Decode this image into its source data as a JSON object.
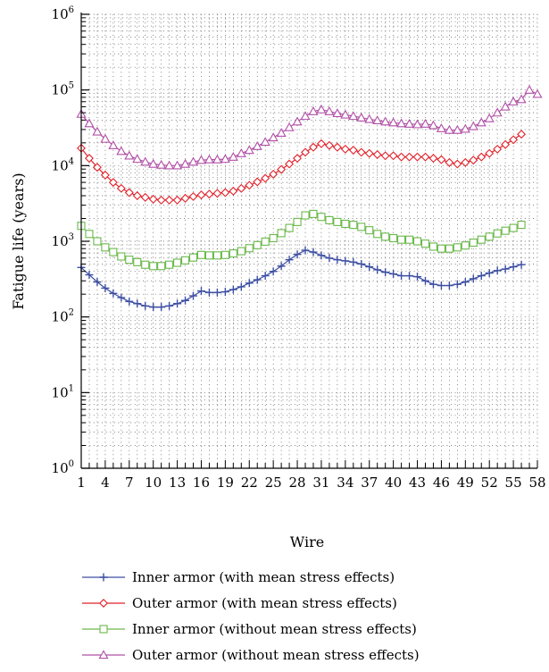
{
  "chart_data": {
    "type": "line",
    "xlabel": "Wire",
    "ylabel": "Fatigue life (years)",
    "yscale": "log",
    "ylim": [
      1,
      1000000
    ],
    "xlim": [
      1,
      58
    ],
    "xticks": [
      1,
      4,
      7,
      10,
      13,
      16,
      19,
      22,
      25,
      28,
      31,
      34,
      37,
      40,
      43,
      46,
      49,
      52,
      55,
      58
    ],
    "yticks": [
      {
        "base": "10",
        "exp": "0",
        "value": 1
      },
      {
        "base": "10",
        "exp": "1",
        "value": 10
      },
      {
        "base": "10",
        "exp": "2",
        "value": 100
      },
      {
        "base": "10",
        "exp": "3",
        "value": 1000
      },
      {
        "base": "10",
        "exp": "4",
        "value": 10000
      },
      {
        "base": "10",
        "exp": "5",
        "value": 100000
      },
      {
        "base": "10",
        "exp": "6",
        "value": 1000000
      }
    ],
    "grid": "dotted",
    "legend_position": "below",
    "series": [
      {
        "name": "Inner armor (with mean stress effects)",
        "color": "#3d4fa3",
        "marker": "plus",
        "x": [
          1,
          2,
          3,
          4,
          5,
          6,
          7,
          8,
          9,
          10,
          11,
          12,
          13,
          14,
          15,
          16,
          17,
          18,
          19,
          20,
          21,
          22,
          23,
          24,
          25,
          26,
          27,
          28,
          29,
          30,
          31,
          32,
          33,
          34,
          35,
          36,
          37,
          38,
          39,
          40,
          41,
          42,
          43,
          44,
          45,
          46,
          47,
          48,
          49,
          50,
          51,
          52,
          53,
          54,
          55,
          56
        ],
        "y": [
          450,
          360,
          290,
          240,
          205,
          180,
          160,
          150,
          140,
          135,
          135,
          140,
          150,
          165,
          190,
          220,
          210,
          210,
          215,
          230,
          250,
          280,
          310,
          350,
          400,
          470,
          570,
          670,
          760,
          720,
          650,
          600,
          570,
          550,
          530,
          500,
          460,
          420,
          390,
          370,
          350,
          350,
          340,
          300,
          270,
          260,
          260,
          270,
          290,
          320,
          350,
          380,
          410,
          430,
          460,
          490
        ]
      },
      {
        "name": "Outer armor (with mean stress effects)",
        "color": "#e0222a",
        "marker": "diamond",
        "x": [
          1,
          2,
          3,
          4,
          5,
          6,
          7,
          8,
          9,
          10,
          11,
          12,
          13,
          14,
          15,
          16,
          17,
          18,
          19,
          20,
          21,
          22,
          23,
          24,
          25,
          26,
          27,
          28,
          29,
          30,
          31,
          32,
          33,
          34,
          35,
          36,
          37,
          38,
          39,
          40,
          41,
          42,
          43,
          44,
          45,
          46,
          47,
          48,
          49,
          50,
          51,
          52,
          53,
          54,
          55,
          56
        ],
        "y": [
          17000,
          12500,
          9500,
          7500,
          6000,
          5000,
          4400,
          4000,
          3800,
          3600,
          3500,
          3500,
          3500,
          3700,
          3900,
          4100,
          4200,
          4300,
          4400,
          4600,
          5000,
          5500,
          6100,
          6800,
          7700,
          8900,
          10500,
          12500,
          15000,
          17500,
          19500,
          18500,
          17500,
          16500,
          16000,
          15000,
          14500,
          14000,
          13500,
          13500,
          13000,
          13000,
          13000,
          13000,
          12500,
          12000,
          11000,
          10500,
          11000,
          11800,
          13000,
          14500,
          16500,
          19000,
          22000,
          26000
        ]
      },
      {
        "name": "Inner armor (without mean stress effects)",
        "color": "#6ab84a",
        "marker": "square",
        "x": [
          1,
          2,
          3,
          4,
          5,
          6,
          7,
          8,
          9,
          10,
          11,
          12,
          13,
          14,
          15,
          16,
          17,
          18,
          19,
          20,
          21,
          22,
          23,
          24,
          25,
          26,
          27,
          28,
          29,
          30,
          31,
          32,
          33,
          34,
          35,
          36,
          37,
          38,
          39,
          40,
          41,
          42,
          43,
          44,
          45,
          46,
          47,
          48,
          49,
          50,
          51,
          52,
          53,
          54,
          55,
          56
        ],
        "y": [
          1600,
          1250,
          1000,
          830,
          720,
          630,
          570,
          530,
          490,
          470,
          470,
          490,
          520,
          560,
          610,
          660,
          650,
          650,
          660,
          690,
          740,
          810,
          890,
          990,
          1100,
          1280,
          1500,
          1800,
          2200,
          2300,
          2100,
          1900,
          1800,
          1700,
          1650,
          1550,
          1400,
          1250,
          1150,
          1100,
          1050,
          1050,
          1000,
          930,
          850,
          800,
          800,
          830,
          880,
          960,
          1050,
          1150,
          1270,
          1380,
          1500,
          1650
        ]
      },
      {
        "name": "Outer armor (without mean stress effects)",
        "color": "#b04fa6",
        "marker": "triangle",
        "x": [
          1,
          2,
          3,
          4,
          5,
          6,
          7,
          8,
          9,
          10,
          11,
          12,
          13,
          14,
          15,
          16,
          17,
          18,
          19,
          20,
          21,
          22,
          23,
          24,
          25,
          26,
          27,
          28,
          29,
          30,
          31,
          32,
          33,
          34,
          35,
          36,
          37,
          38,
          39,
          40,
          41,
          42,
          43,
          44,
          45,
          46,
          47,
          48,
          49,
          50,
          51,
          52,
          53,
          54,
          55,
          56,
          57,
          58
        ],
        "y": [
          48000,
          36000,
          28000,
          22500,
          18500,
          15500,
          13500,
          12200,
          11200,
          10500,
          10200,
          10000,
          10000,
          10500,
          11200,
          11800,
          12000,
          12000,
          12200,
          13000,
          14500,
          16000,
          18000,
          20500,
          23500,
          27000,
          32000,
          38000,
          45000,
          52000,
          55000,
          52000,
          49000,
          47000,
          45000,
          43000,
          41000,
          39500,
          38000,
          37000,
          36000,
          35500,
          35000,
          35500,
          34000,
          31000,
          29500,
          29500,
          30500,
          33000,
          37000,
          42000,
          50000,
          60000,
          70000,
          75000,
          100000,
          88000
        ]
      }
    ]
  }
}
